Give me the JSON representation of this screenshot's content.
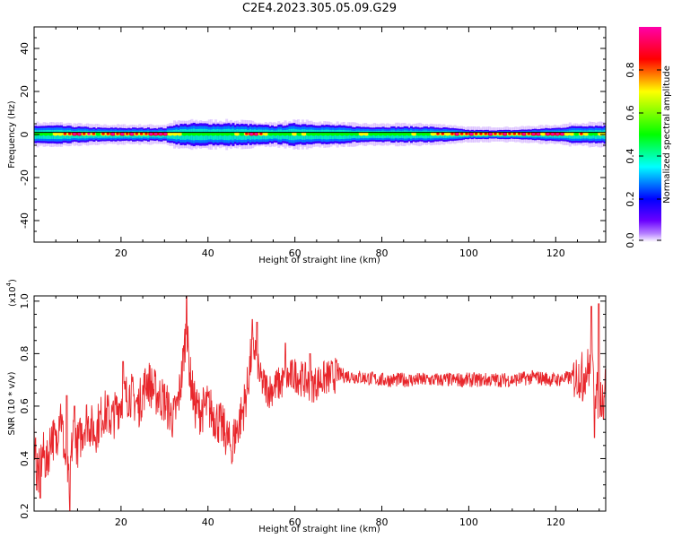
{
  "title": "C2E4.2023.305.05.09.G29",
  "chart_data": [
    {
      "type": "heatmap",
      "xlabel": "Height of straight line (km)",
      "ylabel": "Frequency (Hz)",
      "xlim": [
        0,
        131.5
      ],
      "ylim": [
        -50,
        50
      ],
      "xticks": [
        20,
        40,
        60,
        80,
        100,
        120
      ],
      "yticks": [
        40,
        20,
        0,
        -20,
        -40
      ],
      "colorbar": {
        "label": "Normalized spectral amplitude",
        "ticks": [
          0.0,
          0.2,
          0.4,
          0.6,
          0.8
        ],
        "colors": [
          "#ffffff",
          "#6a00ff",
          "#0000ff",
          "#00ffff",
          "#00ff00",
          "#ffff00",
          "#ff0000",
          "#ff00aa"
        ]
      },
      "reference_line_hz": 1,
      "band_halfwidth_hz": [
        [
          0,
          4
        ],
        [
          5,
          4
        ],
        [
          10,
          3.5
        ],
        [
          15,
          3
        ],
        [
          20,
          3
        ],
        [
          25,
          3
        ],
        [
          30,
          3
        ],
        [
          32,
          4.5
        ],
        [
          36,
          5
        ],
        [
          45,
          5
        ],
        [
          50,
          4.5
        ],
        [
          55,
          4
        ],
        [
          60,
          5
        ],
        [
          65,
          4.5
        ],
        [
          70,
          4
        ],
        [
          75,
          3.5
        ],
        [
          80,
          3.5
        ],
        [
          90,
          3.5
        ],
        [
          95,
          3
        ],
        [
          100,
          2
        ],
        [
          110,
          2
        ],
        [
          120,
          3
        ],
        [
          125,
          4
        ],
        [
          131.5,
          4
        ]
      ],
      "band_core_amplitude": [
        [
          0,
          0.55
        ],
        [
          5,
          0.75
        ],
        [
          10,
          0.8
        ],
        [
          15,
          0.7
        ],
        [
          20,
          0.85
        ],
        [
          25,
          0.9
        ],
        [
          30,
          0.85
        ],
        [
          35,
          0.45
        ],
        [
          40,
          0.55
        ],
        [
          45,
          0.6
        ],
        [
          50,
          0.8
        ],
        [
          55,
          0.55
        ],
        [
          60,
          0.6
        ],
        [
          65,
          0.5
        ],
        [
          70,
          0.55
        ],
        [
          75,
          0.6
        ],
        [
          80,
          0.6
        ],
        [
          85,
          0.65
        ],
        [
          90,
          0.6
        ],
        [
          95,
          0.7
        ],
        [
          100,
          0.85
        ],
        [
          110,
          0.9
        ],
        [
          120,
          0.85
        ],
        [
          125,
          0.7
        ],
        [
          131.5,
          0.6
        ]
      ]
    },
    {
      "type": "line",
      "xlabel": "Height of straight line (km)",
      "ylabel": "SNR (10 * v/v)",
      "y_multiplier": "(x10",
      "y_multiplier_exp": "4",
      "y_multiplier_close": ")",
      "xlim": [
        0,
        131.5
      ],
      "ylim": [
        0.2,
        1.02
      ],
      "xticks": [
        20,
        40,
        60,
        80,
        100,
        120
      ],
      "yticks": [
        0.2,
        0.4,
        0.6,
        0.8,
        1.0
      ],
      "ytick_labels": [
        "0.2",
        "0.4",
        "0.6",
        "0.8",
        "1.0"
      ],
      "color": "#e8262b",
      "series_envelope": [
        [
          0,
          0.5
        ],
        [
          1,
          0.33
        ],
        [
          2,
          0.42
        ],
        [
          3,
          0.38
        ],
        [
          4,
          0.5
        ],
        [
          5,
          0.45
        ],
        [
          6,
          0.6
        ],
        [
          7,
          0.42
        ],
        [
          8,
          0.3
        ],
        [
          9,
          0.5
        ],
        [
          10,
          0.45
        ],
        [
          12,
          0.55
        ],
        [
          14,
          0.5
        ],
        [
          16,
          0.58
        ],
        [
          18,
          0.55
        ],
        [
          20,
          0.62
        ],
        [
          22,
          0.65
        ],
        [
          24,
          0.6
        ],
        [
          26,
          0.7
        ],
        [
          28,
          0.65
        ],
        [
          30,
          0.62
        ],
        [
          32,
          0.55
        ],
        [
          33,
          0.6
        ],
        [
          34,
          0.72
        ],
        [
          35,
          0.9
        ],
        [
          36,
          0.7
        ],
        [
          37,
          0.6
        ],
        [
          38,
          0.58
        ],
        [
          40,
          0.6
        ],
        [
          42,
          0.55
        ],
        [
          44,
          0.5
        ],
        [
          45,
          0.45
        ],
        [
          46,
          0.48
        ],
        [
          48,
          0.58
        ],
        [
          49,
          0.66
        ],
        [
          50,
          0.8
        ],
        [
          51,
          0.82
        ],
        [
          52,
          0.7
        ],
        [
          54,
          0.66
        ],
        [
          56,
          0.68
        ],
        [
          58,
          0.7
        ],
        [
          60,
          0.72
        ],
        [
          62,
          0.7
        ],
        [
          64,
          0.68
        ],
        [
          66,
          0.7
        ],
        [
          68,
          0.71
        ],
        [
          70,
          0.72
        ],
        [
          75,
          0.71
        ],
        [
          80,
          0.7
        ],
        [
          90,
          0.7
        ],
        [
          100,
          0.7
        ],
        [
          110,
          0.7
        ],
        [
          115,
          0.71
        ],
        [
          120,
          0.7
        ],
        [
          124,
          0.71
        ],
        [
          126,
          0.72
        ],
        [
          128,
          0.75
        ],
        [
          129,
          0.68
        ],
        [
          130,
          0.62
        ],
        [
          131.5,
          0.68
        ]
      ],
      "spikes": [
        [
          0.6,
          0.28
        ],
        [
          1.4,
          0.25
        ],
        [
          7.5,
          0.64
        ],
        [
          8.2,
          0.2
        ],
        [
          9.3,
          0.6
        ],
        [
          20.5,
          0.77
        ],
        [
          35.1,
          1.02
        ],
        [
          45.6,
          0.39
        ],
        [
          50.2,
          0.93
        ],
        [
          51.3,
          0.92
        ],
        [
          57.8,
          0.84
        ],
        [
          63.5,
          0.8
        ],
        [
          126.2,
          0.62
        ],
        [
          128.2,
          0.98
        ],
        [
          128.9,
          0.48
        ],
        [
          129.9,
          0.99
        ],
        [
          131.0,
          0.55
        ]
      ]
    }
  ]
}
